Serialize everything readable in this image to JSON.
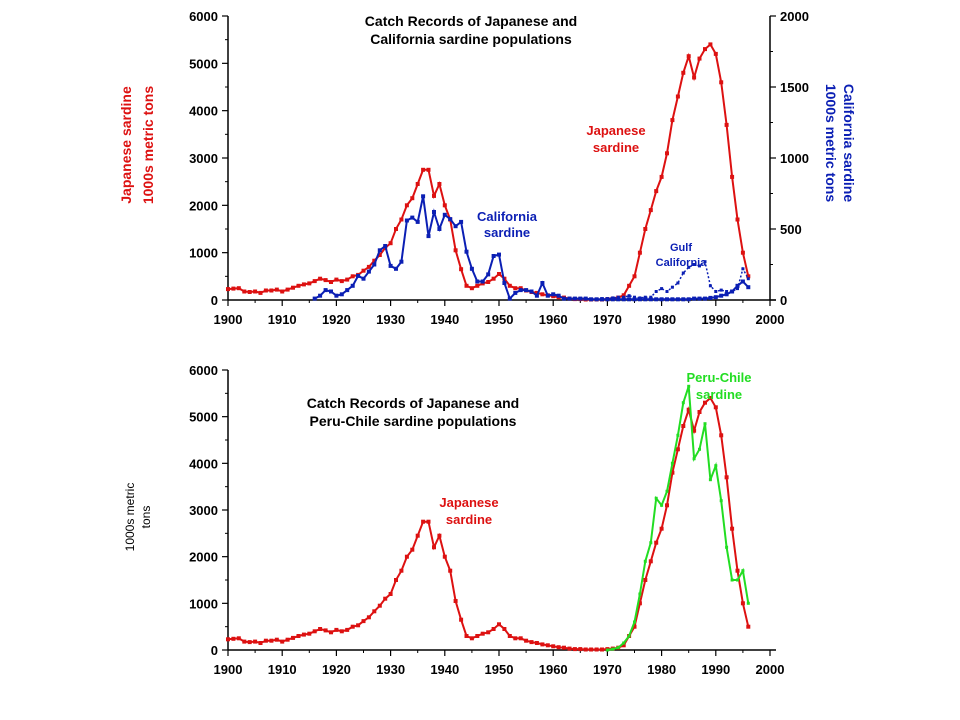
{
  "colors": {
    "japanese": "#dd1111",
    "california": "#0b1fb4",
    "peru": "#22dd22",
    "axis": "#000000"
  },
  "chart_data": [
    {
      "type": "line",
      "title_lines": [
        "Catch Records of Japanese and",
        "California sardine populations"
      ],
      "xlabel": "",
      "y_left_label_lines": [
        "Japanese sardine",
        "1000s metric tons"
      ],
      "y_right_label_lines": [
        "California sardine",
        "1000s metric tons"
      ],
      "xlim": [
        1900,
        2000
      ],
      "ylim_left": [
        0,
        6000
      ],
      "ylim_right": [
        0,
        2000
      ],
      "x_ticks": [
        1900,
        1910,
        1920,
        1930,
        1940,
        1950,
        1960,
        1970,
        1980,
        1990,
        2000
      ],
      "y_left_ticks": [
        0,
        1000,
        2000,
        3000,
        4000,
        5000,
        6000
      ],
      "y_right_ticks": [
        0,
        500,
        1000,
        1500,
        2000
      ],
      "annotations": [
        {
          "text_lines": [
            "Japanese",
            "sardine"
          ]
        },
        {
          "text_lines": [
            "California",
            "sardine"
          ]
        },
        {
          "text_lines": [
            "Gulf",
            "California"
          ]
        }
      ],
      "series": [
        {
          "name": "Japanese sardine",
          "axis": "left",
          "x": [
            1900,
            1901,
            1902,
            1903,
            1904,
            1905,
            1906,
            1907,
            1908,
            1909,
            1910,
            1911,
            1912,
            1913,
            1914,
            1915,
            1916,
            1917,
            1918,
            1919,
            1920,
            1921,
            1922,
            1923,
            1924,
            1925,
            1926,
            1927,
            1928,
            1929,
            1930,
            1931,
            1932,
            1933,
            1934,
            1935,
            1936,
            1937,
            1938,
            1939,
            1940,
            1941,
            1942,
            1943,
            1944,
            1945,
            1946,
            1947,
            1948,
            1949,
            1950,
            1951,
            1952,
            1953,
            1954,
            1955,
            1956,
            1957,
            1958,
            1959,
            1960,
            1961,
            1962,
            1963,
            1964,
            1965,
            1966,
            1967,
            1968,
            1969,
            1970,
            1971,
            1972,
            1973,
            1974,
            1975,
            1976,
            1977,
            1978,
            1979,
            1980,
            1981,
            1982,
            1983,
            1984,
            1985,
            1986,
            1987,
            1988,
            1989,
            1990,
            1991,
            1992,
            1993,
            1994,
            1995,
            1996
          ],
          "y": [
            230,
            240,
            250,
            180,
            170,
            180,
            150,
            200,
            200,
            220,
            180,
            220,
            260,
            300,
            330,
            350,
            400,
            450,
            420,
            380,
            430,
            400,
            430,
            500,
            530,
            620,
            700,
            830,
            950,
            1100,
            1200,
            1500,
            1700,
            2000,
            2150,
            2450,
            2750,
            2750,
            2200,
            2450,
            2000,
            1700,
            1050,
            650,
            300,
            250,
            300,
            350,
            380,
            450,
            550,
            450,
            300,
            250,
            250,
            200,
            170,
            150,
            120,
            100,
            80,
            60,
            50,
            30,
            20,
            20,
            10,
            10,
            10,
            10,
            20,
            30,
            50,
            100,
            300,
            500,
            1000,
            1500,
            1900,
            2300,
            2600,
            3100,
            3800,
            4300,
            4800,
            5150,
            4700,
            5100,
            5300,
            5400,
            5200,
            4600,
            3700,
            2600,
            1700,
            1000,
            500
          ]
        },
        {
          "name": "California sardine",
          "axis": "right",
          "x": [
            1916,
            1917,
            1918,
            1919,
            1920,
            1921,
            1922,
            1923,
            1924,
            1925,
            1926,
            1927,
            1928,
            1929,
            1930,
            1931,
            1932,
            1933,
            1934,
            1935,
            1936,
            1937,
            1938,
            1939,
            1940,
            1941,
            1942,
            1943,
            1944,
            1945,
            1946,
            1947,
            1948,
            1949,
            1950,
            1951,
            1952,
            1953,
            1954,
            1955,
            1956,
            1957,
            1958,
            1959,
            1960,
            1961,
            1962,
            1963,
            1964,
            1965,
            1966,
            1967,
            1968,
            1969,
            1970,
            1971,
            1972,
            1973,
            1974,
            1975,
            1976,
            1977,
            1978,
            1979,
            1980,
            1981,
            1982,
            1983,
            1984,
            1985,
            1986,
            1987,
            1988,
            1989,
            1990,
            1991,
            1992,
            1993,
            1994,
            1995,
            1996
          ],
          "y": [
            10,
            30,
            70,
            60,
            30,
            40,
            70,
            100,
            170,
            150,
            200,
            250,
            350,
            380,
            240,
            220,
            270,
            560,
            580,
            550,
            730,
            450,
            620,
            500,
            600,
            570,
            520,
            550,
            340,
            220,
            130,
            130,
            180,
            310,
            320,
            120,
            10,
            50,
            70,
            70,
            60,
            30,
            120,
            30,
            40,
            30,
            10,
            10,
            10,
            10,
            10,
            5,
            5,
            5,
            5,
            5,
            5,
            5,
            5,
            5,
            5,
            5,
            5,
            5,
            5,
            5,
            5,
            5,
            5,
            5,
            10,
            10,
            10,
            15,
            20,
            30,
            40,
            60,
            100,
            130,
            90
          ]
        },
        {
          "name": "Gulf California",
          "axis": "right",
          "x": [
            1969,
            1970,
            1971,
            1972,
            1973,
            1974,
            1975,
            1976,
            1977,
            1978,
            1979,
            1980,
            1981,
            1982,
            1983,
            1984,
            1985,
            1986,
            1987,
            1988,
            1989,
            1990,
            1991,
            1992,
            1993,
            1994,
            1995,
            1996
          ],
          "y": [
            10,
            10,
            15,
            20,
            20,
            30,
            20,
            15,
            20,
            20,
            60,
            80,
            60,
            90,
            120,
            190,
            230,
            250,
            240,
            270,
            100,
            60,
            70,
            60,
            60,
            80,
            220,
            150
          ]
        }
      ]
    },
    {
      "type": "line",
      "title_lines": [
        "Catch Records of Japanese and",
        "Peru-Chile sardine populations"
      ],
      "xlabel": "",
      "ylabel_lines": [
        "1000s metric",
        "tons"
      ],
      "xlim": [
        1900,
        2000
      ],
      "ylim": [
        0,
        6000
      ],
      "x_ticks": [
        1900,
        1910,
        1920,
        1930,
        1940,
        1950,
        1960,
        1970,
        1980,
        1990,
        2000
      ],
      "y_ticks": [
        0,
        1000,
        2000,
        3000,
        4000,
        5000,
        6000
      ],
      "annotations": [
        {
          "text_lines": [
            "Japanese",
            "sardine"
          ]
        },
        {
          "text_lines": [
            "Peru-Chile",
            "sardine"
          ]
        }
      ],
      "series": [
        {
          "name": "Japanese sardine",
          "x": [
            1900,
            1901,
            1902,
            1903,
            1904,
            1905,
            1906,
            1907,
            1908,
            1909,
            1910,
            1911,
            1912,
            1913,
            1914,
            1915,
            1916,
            1917,
            1918,
            1919,
            1920,
            1921,
            1922,
            1923,
            1924,
            1925,
            1926,
            1927,
            1928,
            1929,
            1930,
            1931,
            1932,
            1933,
            1934,
            1935,
            1936,
            1937,
            1938,
            1939,
            1940,
            1941,
            1942,
            1943,
            1944,
            1945,
            1946,
            1947,
            1948,
            1949,
            1950,
            1951,
            1952,
            1953,
            1954,
            1955,
            1956,
            1957,
            1958,
            1959,
            1960,
            1961,
            1962,
            1963,
            1964,
            1965,
            1966,
            1967,
            1968,
            1969,
            1970,
            1971,
            1972,
            1973,
            1974,
            1975,
            1976,
            1977,
            1978,
            1979,
            1980,
            1981,
            1982,
            1983,
            1984,
            1985,
            1986,
            1987,
            1988,
            1989,
            1990,
            1991,
            1992,
            1993,
            1994,
            1995,
            1996
          ],
          "y": [
            230,
            240,
            250,
            180,
            170,
            180,
            150,
            200,
            200,
            220,
            180,
            220,
            260,
            300,
            330,
            350,
            400,
            450,
            420,
            380,
            430,
            400,
            430,
            500,
            530,
            620,
            700,
            830,
            950,
            1100,
            1200,
            1500,
            1700,
            2000,
            2150,
            2450,
            2750,
            2750,
            2200,
            2450,
            2000,
            1700,
            1050,
            650,
            300,
            250,
            300,
            350,
            380,
            450,
            550,
            450,
            300,
            250,
            250,
            200,
            170,
            150,
            120,
            100,
            80,
            60,
            50,
            30,
            20,
            20,
            10,
            10,
            10,
            10,
            20,
            30,
            50,
            100,
            300,
            500,
            1000,
            1500,
            1900,
            2300,
            2600,
            3100,
            3800,
            4300,
            4800,
            5150,
            4700,
            5100,
            5300,
            5400,
            5200,
            4600,
            3700,
            2600,
            1700,
            1000,
            500
          ]
        },
        {
          "name": "Peru-Chile sardine",
          "x": [
            1970,
            1971,
            1972,
            1973,
            1974,
            1975,
            1976,
            1977,
            1978,
            1979,
            1980,
            1981,
            1982,
            1983,
            1984,
            1985,
            1986,
            1987,
            1988,
            1989,
            1990,
            1991,
            1992,
            1993,
            1994,
            1995,
            1996
          ],
          "y": [
            0,
            20,
            50,
            150,
            300,
            600,
            1200,
            1900,
            2300,
            3250,
            3100,
            3400,
            4000,
            4600,
            5300,
            5650,
            4100,
            4300,
            4850,
            3650,
            3950,
            3200,
            2200,
            1500,
            1500,
            1700,
            1000
          ]
        }
      ]
    }
  ]
}
